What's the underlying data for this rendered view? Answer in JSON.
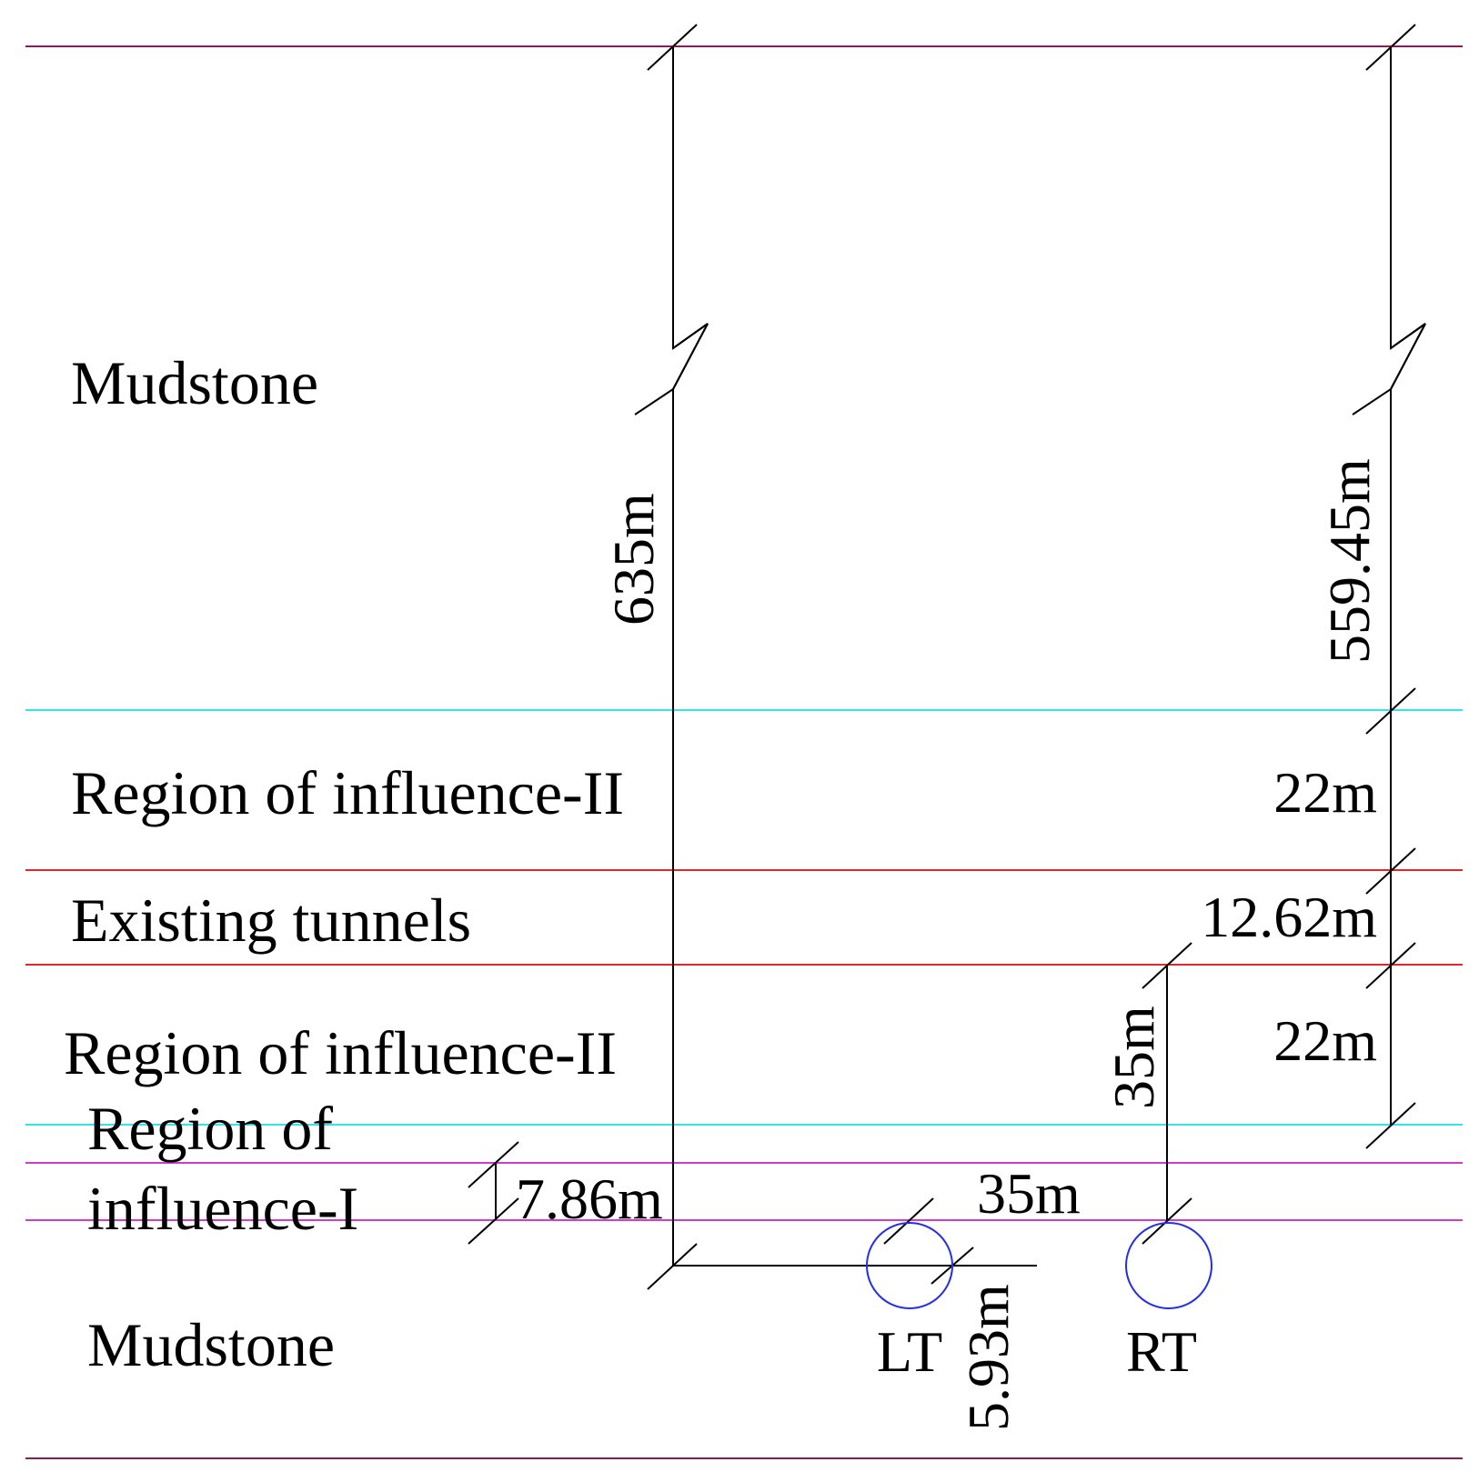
{
  "colors": {
    "boundary": "#8b1a5c",
    "influence_II_boundary": "#36e3ea",
    "tunnel_boundary": "#e0282b",
    "influence_I_boundary": "#d13ccf",
    "tunnel": "#2330e6",
    "dimension": "#000000"
  },
  "layers": {
    "mudstone_top": "Mudstone",
    "influence_II_upper": "Region of influence-II",
    "existing_tunnels": "Existing tunnels",
    "influence_II_lower": "Region of influence-II",
    "influence_I_line1": "Region of",
    "influence_I_line2": "influence-I",
    "mudstone_bottom": "Mudstone"
  },
  "dimensions": {
    "total_depth": "635m",
    "depth_to_influence_II": "559.45m",
    "upper_influence_II": "22m",
    "tunnels_zone": "12.62m",
    "lower_influence_II": "22m",
    "tunnel_offset_vertical": "35m",
    "tunnel_spacing": "35m",
    "influence_I_thickness": "7.86m",
    "tunnel_radius": "5.93m"
  },
  "tunnels": {
    "left": "LT",
    "right": "RT"
  }
}
